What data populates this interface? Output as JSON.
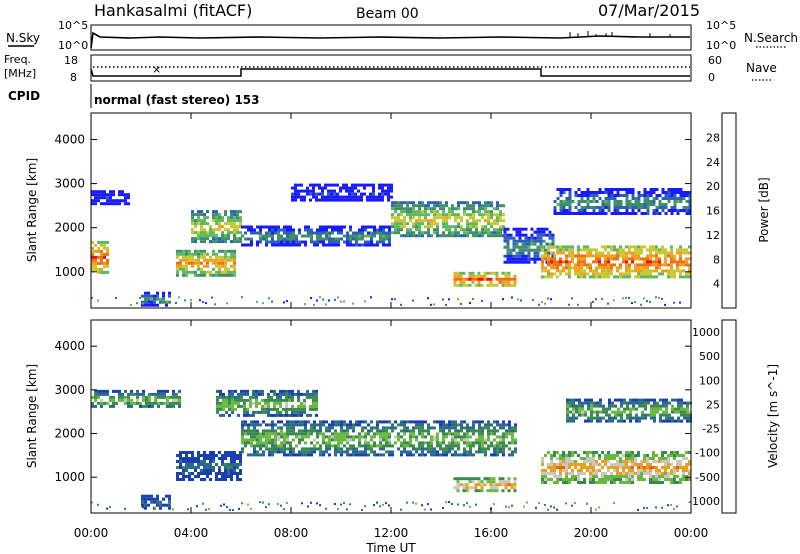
{
  "header": {
    "station": "Hankasalmi (fitACF)",
    "beam": "Beam 00",
    "date": "07/Mar/2015"
  },
  "noise_panel": {
    "left_label": "N.Sky",
    "right_label": "N.Search",
    "left_ticks": [
      "10^5",
      "10^0"
    ],
    "right_ticks": [
      "10^5",
      "10^0"
    ]
  },
  "freq_panel": {
    "left_label_1": "Freq.",
    "left_label_2": "[MHz]",
    "right_label": "Nave",
    "left_ticks": [
      "18",
      "8"
    ],
    "right_ticks": [
      "60",
      "0"
    ]
  },
  "cpid": {
    "label": "CPID",
    "text": "normal (fast stereo) 153"
  },
  "x_axis": {
    "label": "Time UT",
    "ticks": [
      "00:00",
      "04:00",
      "08:00",
      "12:00",
      "16:00",
      "20:00",
      "00:00"
    ]
  },
  "chart_data": [
    {
      "type": "heatmap",
      "panel": "power",
      "xlabel": "",
      "ylabel": "Slant Range [km]",
      "yticks": [
        1000,
        2000,
        3000,
        4000
      ],
      "xlim_hours": [
        0,
        24
      ],
      "ylim_km": [
        180,
        4600
      ],
      "colorbar": {
        "label": "Power [dB]",
        "ticks": [
          "4",
          "8",
          "12",
          "16",
          "20",
          "24",
          "28"
        ],
        "colors": [
          "#1a1aff",
          "#2b62b8",
          "#3f8f6a",
          "#5fb860",
          "#c8c832",
          "#f0a020",
          "#f07010",
          "#e81010"
        ]
      },
      "bands": [
        {
          "t_start": 0.0,
          "t_end": 0.7,
          "r_low": 1000,
          "r_high": 1700,
          "level": 7
        },
        {
          "t_start": 0.0,
          "t_end": 1.5,
          "r_low": 2550,
          "r_high": 2850,
          "level": 1
        },
        {
          "t_start": 2.0,
          "t_end": 3.2,
          "r_low": 250,
          "r_high": 550,
          "level": 3
        },
        {
          "t_start": 3.4,
          "t_end": 5.7,
          "r_low": 950,
          "r_high": 1500,
          "level": 6
        },
        {
          "t_start": 4.0,
          "t_end": 6.0,
          "r_low": 1700,
          "r_high": 2400,
          "level": 5
        },
        {
          "t_start": 6.0,
          "t_end": 12.0,
          "r_low": 1600,
          "r_high": 2050,
          "level": 3
        },
        {
          "t_start": 8.0,
          "t_end": 12.0,
          "r_low": 2600,
          "r_high": 3000,
          "level": 1
        },
        {
          "t_start": 12.0,
          "t_end": 16.5,
          "r_low": 1800,
          "r_high": 2600,
          "level": 5
        },
        {
          "t_start": 14.5,
          "t_end": 17.0,
          "r_low": 700,
          "r_high": 1000,
          "level": 7
        },
        {
          "t_start": 16.5,
          "t_end": 18.5,
          "r_low": 1200,
          "r_high": 2000,
          "level": 3
        },
        {
          "t_start": 18.0,
          "t_end": 24.0,
          "r_low": 900,
          "r_high": 1600,
          "level": 7
        },
        {
          "t_start": 18.5,
          "t_end": 24.0,
          "r_low": 2300,
          "r_high": 2900,
          "level": 3
        }
      ]
    },
    {
      "type": "heatmap",
      "panel": "velocity",
      "xlabel": "Time UT",
      "ylabel": "Slant Range [km]",
      "yticks": [
        1000,
        2000,
        3000,
        4000
      ],
      "xlim_hours": [
        0,
        24
      ],
      "ylim_km": [
        180,
        4600
      ],
      "colorbar": {
        "label": "Velocity [m s^-1]",
        "ticks": [
          "1000",
          "500",
          "100",
          "25",
          "-25",
          "-100",
          "-500",
          "-1000"
        ],
        "colors": [
          "#1a3fb0",
          "#2a6a8a",
          "#3a8a50",
          "#6ab840",
          "#c8c8c0",
          "#e8a020",
          "#f06010",
          "#e81010"
        ]
      },
      "bands": [
        {
          "t_start": 0.0,
          "t_end": 3.5,
          "r_low": 2600,
          "r_high": 3000,
          "level": 4
        },
        {
          "t_start": 2.0,
          "t_end": 3.2,
          "r_low": 300,
          "r_high": 600,
          "level": 2
        },
        {
          "t_start": 3.4,
          "t_end": 6.0,
          "r_low": 950,
          "r_high": 1600,
          "level": 2
        },
        {
          "t_start": 5.0,
          "t_end": 9.0,
          "r_low": 2400,
          "r_high": 3000,
          "level": 4
        },
        {
          "t_start": 6.0,
          "t_end": 17.0,
          "r_low": 1500,
          "r_high": 2300,
          "level": 4
        },
        {
          "t_start": 14.5,
          "t_end": 17.0,
          "r_low": 700,
          "r_high": 1000,
          "level": 6
        },
        {
          "t_start": 18.0,
          "t_end": 24.0,
          "r_low": 900,
          "r_high": 1600,
          "level": 6
        },
        {
          "t_start": 19.0,
          "t_end": 24.0,
          "r_low": 2300,
          "r_high": 2800,
          "level": 4
        }
      ]
    }
  ]
}
